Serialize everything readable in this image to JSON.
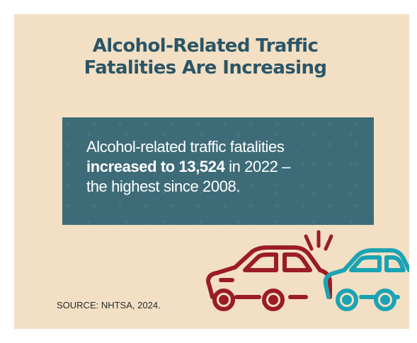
{
  "title": {
    "line1": "Alcohol-Related Traffic",
    "line2": "Fatalities Are Increasing"
  },
  "stat": {
    "line1": "Alcohol-related traffic fatalities",
    "bold": "increased to 13,524",
    "after_bold": " in 2022 –",
    "line3": "the highest since 2008."
  },
  "source": "SOURCE: NHTSA, 2024.",
  "illustration": {
    "left_car_icon": "car-icon",
    "right_car_icon": "car-icon",
    "impact_icon": "impact-lines-icon"
  },
  "colors": {
    "background": "#f2dfc4",
    "title": "#2b5566",
    "stat_box": "#3d6b78",
    "red_car": "#9b1c24",
    "teal_car": "#1aa3b3"
  }
}
